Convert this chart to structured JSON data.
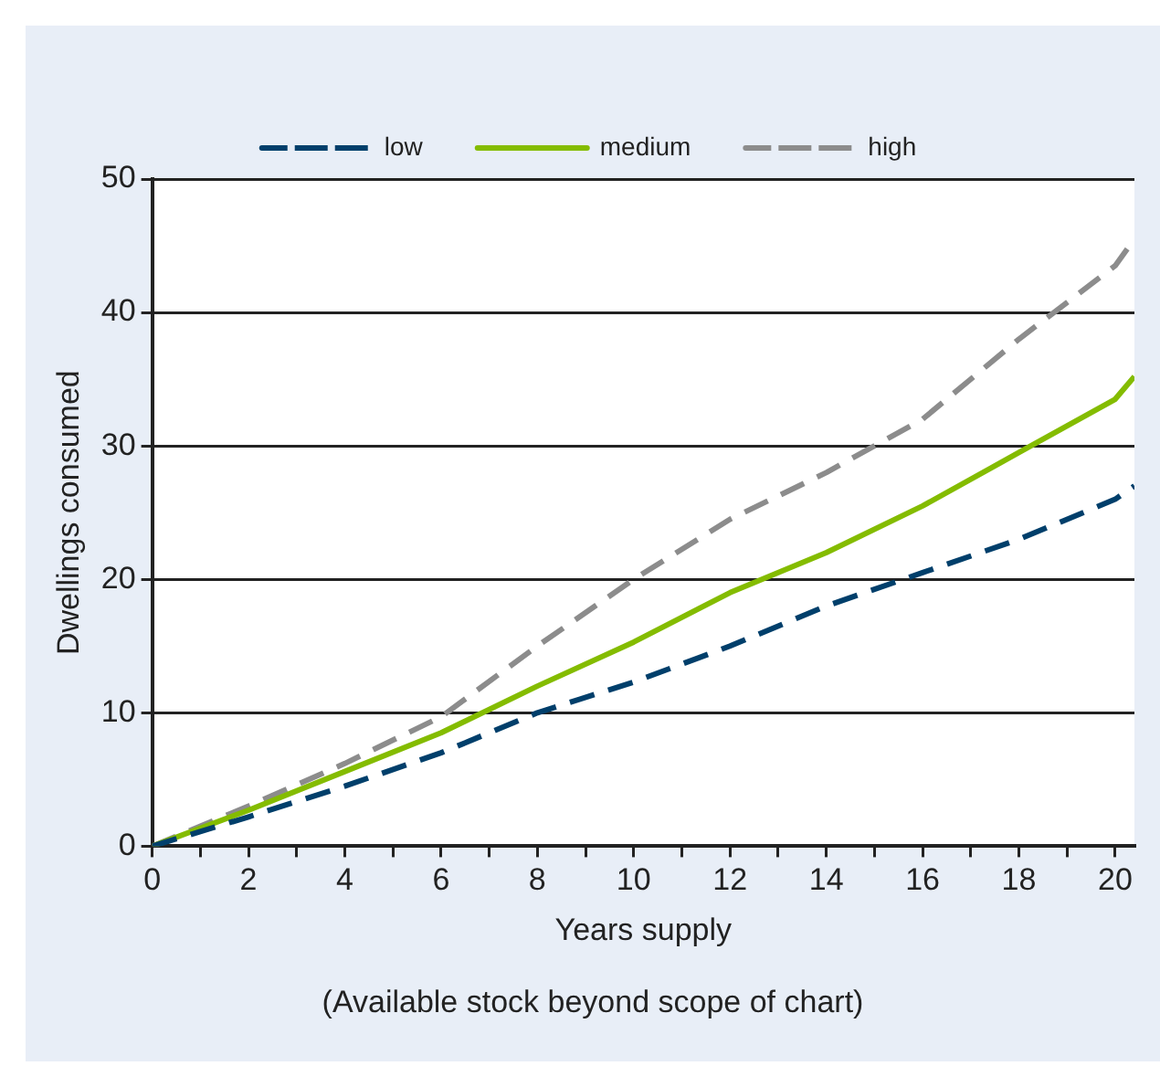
{
  "chart_data": {
    "type": "line",
    "xlabel": "Years supply",
    "ylabel": "Dwellings consumed",
    "annotations": [
      "(Available stock beyond scope of chart)"
    ],
    "xlim": [
      0,
      20.4
    ],
    "xticks": [
      0,
      {
        "value": 1,
        "label": null
      },
      2,
      {
        "value": 3,
        "label": null
      },
      4,
      {
        "value": 5,
        "label": null
      },
      6,
      {
        "value": 7,
        "label": null
      },
      8,
      {
        "value": 9,
        "label": null
      },
      10,
      {
        "value": 11,
        "label": null
      },
      12,
      {
        "value": 13,
        "label": null
      },
      14,
      {
        "value": 15,
        "label": null
      },
      16,
      {
        "value": 17,
        "label": null
      },
      18,
      {
        "value": 19,
        "label": null
      },
      20
    ],
    "ylim": [
      0,
      50
    ],
    "yticks": [
      0,
      10,
      20,
      30,
      40,
      50
    ],
    "grid": "y",
    "legend": "top",
    "marker": "none",
    "x": [
      0,
      2,
      4,
      6,
      8,
      10,
      12,
      14,
      16,
      18,
      20,
      20.4
    ],
    "series": [
      {
        "name": "low",
        "color": "#003f6b",
        "line_style": "dashed",
        "values": [
          0,
          2.2,
          4.5,
          7,
          10,
          12.3,
          15,
          18,
          20.5,
          23,
          26,
          27
        ]
      },
      {
        "name": "medium",
        "color": "#84bc00",
        "line_style": "solid",
        "values": [
          0,
          2.7,
          5.6,
          8.5,
          12,
          15.3,
          19,
          22,
          25.5,
          29.5,
          33.5,
          35.2
        ]
      },
      {
        "name": "high",
        "color": "#8c8c8c",
        "line_style": "dashed",
        "values": [
          0,
          3,
          6.2,
          9.7,
          15,
          20,
          24.5,
          28,
          32,
          38,
          43.5,
          45.5
        ]
      }
    ]
  }
}
